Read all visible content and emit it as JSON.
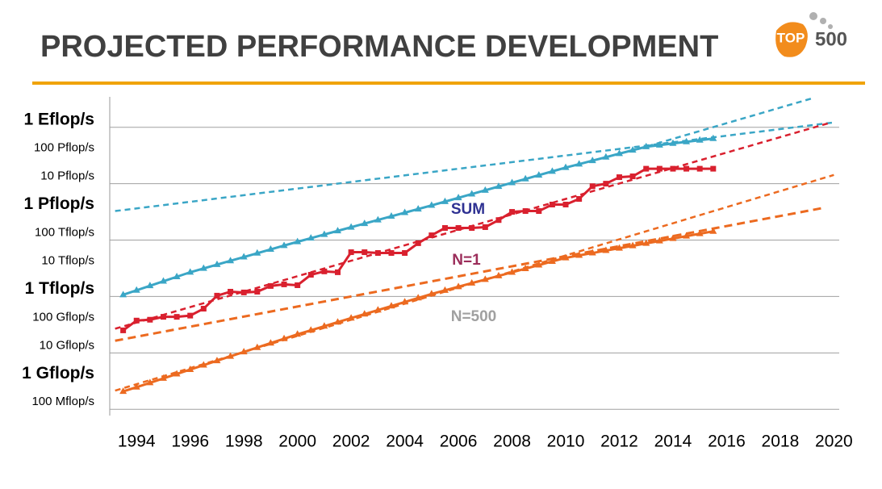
{
  "chart_data": {
    "type": "line",
    "title": "PROJECTED PERFORMANCE DEVELOPMENT",
    "logo": {
      "top": "TOP",
      "num": "500"
    },
    "ylog": true,
    "grid": true,
    "xlim": [
      1993,
      2020.5
    ],
    "xticks": [
      1994,
      1996,
      1998,
      2000,
      2002,
      2004,
      2006,
      2008,
      2010,
      2012,
      2014,
      2016,
      2018,
      2020
    ],
    "ylim": [
      0.06,
      12000000000
    ],
    "yticks": [
      {
        "value": 1000000000,
        "label": "1 Eflop/s"
      },
      {
        "value": 100000000,
        "label": "100 Pflop/s"
      },
      {
        "value": 10000000,
        "label": "10 Pflop/s"
      },
      {
        "value": 1000000,
        "label": "1 Pflop/s"
      },
      {
        "value": 100000,
        "label": "100 Tflop/s"
      },
      {
        "value": 10000,
        "label": "10 Tflop/s"
      },
      {
        "value": 1000,
        "label": "1 Tflop/s"
      },
      {
        "value": 100,
        "label": "100 Gflop/s"
      },
      {
        "value": 10,
        "label": "10 Gflop/s"
      },
      {
        "value": 1,
        "label": "1 Gflop/s"
      },
      {
        "value": 0.1,
        "label": "100 Mflop/s"
      }
    ],
    "x": [
      1993.5,
      1994,
      1994.5,
      1995,
      1995.5,
      1996,
      1996.5,
      1997,
      1997.5,
      1998,
      1998.5,
      1999,
      1999.5,
      2000,
      2000.5,
      2001,
      2001.5,
      2002,
      2002.5,
      2003,
      2003.5,
      2004,
      2004.5,
      2005,
      2005.5,
      2006,
      2006.5,
      2007,
      2007.5,
      2008,
      2008.5,
      2009,
      2009.5,
      2010,
      2010.5,
      2011,
      2011.5,
      2012,
      2012.5,
      2013,
      2013.5,
      2014,
      2014.5,
      2015,
      2015.5
    ],
    "series": [
      {
        "name": "SUM",
        "color": "#3aa6c6",
        "marker": "triangle",
        "values": [
          1150,
          1660,
          2400,
          3470,
          5000,
          7240,
          9900,
          13500,
          18400,
          25100,
          34300,
          46800,
          63800,
          87100,
          117000,
          158000,
          212000,
          286000,
          385000,
          518000,
          697000,
          938000,
          1260000,
          1700000,
          2310000,
          3150000,
          4290000,
          5830000,
          7940000,
          10800000,
          14700000,
          20000000,
          27300000,
          37200000,
          49300000,
          65600000,
          87100000,
          116000000,
          154000000,
          204000000,
          233000000,
          267000000,
          305000000,
          348000000,
          398000000
        ]
      },
      {
        "name": "N=1",
        "color": "#d9202e",
        "marker": "square",
        "values": [
          63,
          140,
          150,
          190,
          190,
          210,
          370,
          1070,
          1480,
          1390,
          1480,
          2360,
          2690,
          2510,
          5890,
          7760,
          7240,
          37200,
          37200,
          34900,
          34900,
          34900,
          77600,
          148000,
          269000,
          269000,
          269000,
          288000,
          513000,
          1000000,
          1070000,
          1070000,
          1820000,
          1820000,
          2880000,
          8130000,
          10000000,
          17000000,
          18200000,
          33900000,
          33900000,
          33900000,
          33900000,
          33900000,
          33900000
        ]
      },
      {
        "name": "N=500",
        "color": "#ec6a20",
        "marker": "triangle",
        "values": [
          0.43,
          0.61,
          0.87,
          1.25,
          1.79,
          2.57,
          3.68,
          5.27,
          7.55,
          10.8,
          15.5,
          22.2,
          31.8,
          45.7,
          63.5,
          88.3,
          123,
          171,
          237,
          330,
          458,
          637,
          885,
          1230,
          1650,
          2220,
          2980,
          4000,
          5370,
          7210,
          9680,
          13000,
          17500,
          23400,
          28600,
          34800,
          42400,
          51500,
          62800,
          76400,
          93100,
          113000,
          138000,
          168000,
          204000
        ]
      }
    ],
    "trendlines": [
      {
        "color": "#3aa6c6",
        "x": [
          1993.2,
          2020
        ],
        "values": [
          1070000,
          1480000000
        ]
      },
      {
        "color": "#3aa6c6",
        "x": [
          2012.7,
          2019.2
        ],
        "values": [
          170000000,
          10700000000
        ]
      },
      {
        "color": "#d9202e",
        "x": [
          1993.2,
          2019.9
        ],
        "values": [
          72,
          1480000000
        ]
      },
      {
        "color": "#ec6a20",
        "x": [
          1993.2,
          2020
        ],
        "values": [
          0.46,
          20400000
        ]
      },
      {
        "color": "#ec6a20",
        "x": [
          1993.2,
          2019.6
        ],
        "values": [
          27,
          1380000
        ]
      }
    ],
    "annotations": [
      {
        "text": "SUM",
        "color": "#2e3192"
      },
      {
        "text": "N=1",
        "color": "#9b2d5a"
      },
      {
        "text": "N=500",
        "color": "#a0a0a0"
      }
    ]
  }
}
